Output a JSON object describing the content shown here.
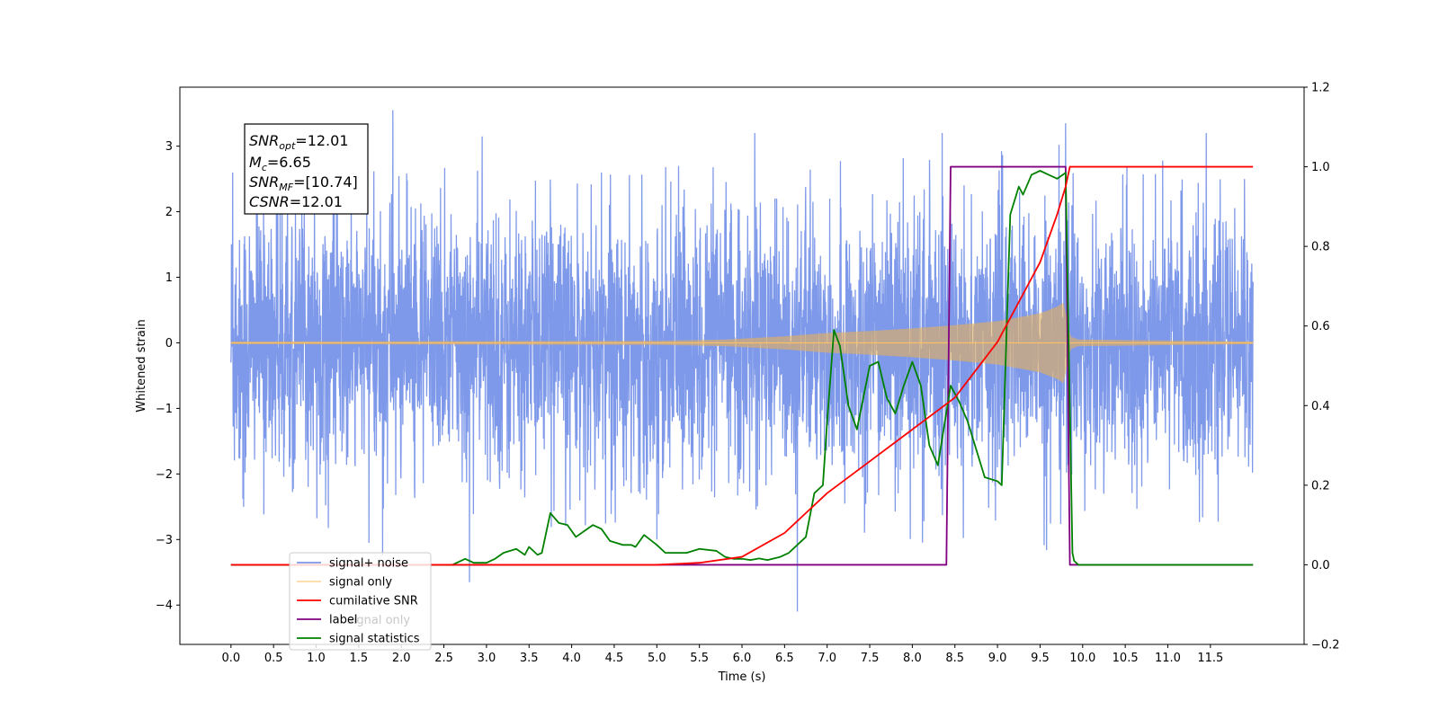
{
  "chart_data": {
    "type": "line",
    "title": "",
    "xlabel": "Time (s)",
    "ylabel": "Whitened strain",
    "xlim": [
      -0.6,
      12.6
    ],
    "ylim": [
      -4.6,
      3.9
    ],
    "ylim_right": [
      -0.2,
      1.2
    ],
    "grid": false,
    "legend_position": "lower-left",
    "x_ticks": [
      "0.0",
      "0.5",
      "1.0",
      "1.5",
      "2.0",
      "2.5",
      "3.0",
      "3.5",
      "4.0",
      "4.5",
      "5.0",
      "5.5",
      "6.0",
      "6.5",
      "7.0",
      "7.5",
      "8.0",
      "8.5",
      "9.0",
      "9.5",
      "10.0",
      "10.5",
      "11.0",
      "11.5"
    ],
    "y_ticks_left": [
      "−4",
      "−3",
      "−2",
      "−1",
      "0",
      "1",
      "2",
      "3"
    ],
    "y_ticks_right": [
      "−0.2",
      "0.0",
      "0.2",
      "0.4",
      "0.6",
      "0.8",
      "1.0",
      "1.2"
    ],
    "annotation": {
      "snr_opt": {
        "main": "SNR",
        "sub": "opt",
        "value": "=12.01"
      },
      "mc": {
        "main": "M",
        "sub": "c",
        "value": "=6.65"
      },
      "snr_mf": {
        "main": "SNR",
        "sub": "MF",
        "value": "=[10.74]"
      },
      "csnr": {
        "main": "CSNR",
        "value": "=12.01"
      }
    },
    "series": [
      {
        "name": "signal+ noise",
        "axis": "left",
        "color": "#7a96e8",
        "x_range": [
          0.0,
          12.0
        ],
        "typical_amplitude": 1.2,
        "peaks": [
          {
            "x": 0.02,
            "y": 2.6
          },
          {
            "x": 0.15,
            "y": -2.5
          },
          {
            "x": 0.3,
            "y": 2.9
          },
          {
            "x": 0.55,
            "y": 2.7
          },
          {
            "x": 1.2,
            "y": 2.6
          },
          {
            "x": 1.62,
            "y": -3.05
          },
          {
            "x": 1.78,
            "y": -3.25
          },
          {
            "x": 1.9,
            "y": 3.55
          },
          {
            "x": 2.8,
            "y": -3.65
          },
          {
            "x": 2.95,
            "y": 3.15
          },
          {
            "x": 4.35,
            "y": 2.6
          },
          {
            "x": 5.0,
            "y": -3.0
          },
          {
            "x": 6.15,
            "y": 3.2
          },
          {
            "x": 6.65,
            "y": -4.1
          },
          {
            "x": 8.35,
            "y": 3.2
          },
          {
            "x": 9.8,
            "y": 3.35
          },
          {
            "x": 11.45,
            "y": 3.2
          },
          {
            "x": 11.9,
            "y": 2.5
          }
        ]
      },
      {
        "name": "signal only",
        "axis": "left",
        "color": "#ffc266",
        "envelope": [
          [
            0.0,
            0.02
          ],
          [
            5.0,
            0.03
          ],
          [
            5.8,
            0.05
          ],
          [
            6.5,
            0.1
          ],
          [
            7.0,
            0.15
          ],
          [
            7.5,
            0.18
          ],
          [
            8.0,
            0.22
          ],
          [
            8.5,
            0.27
          ],
          [
            9.0,
            0.33
          ],
          [
            9.5,
            0.45
          ],
          [
            9.7,
            0.55
          ],
          [
            9.78,
            0.62
          ],
          [
            9.85,
            0.1
          ],
          [
            9.95,
            0.05
          ],
          [
            12.0,
            0.02
          ]
        ]
      },
      {
        "name": "cumilative SNR",
        "axis": "right",
        "color": "#ff0000",
        "points": [
          [
            0.0,
            0.0
          ],
          [
            5.0,
            0.0
          ],
          [
            5.5,
            0.005
          ],
          [
            6.0,
            0.02
          ],
          [
            6.5,
            0.08
          ],
          [
            7.0,
            0.18
          ],
          [
            7.5,
            0.26
          ],
          [
            8.0,
            0.34
          ],
          [
            8.5,
            0.42
          ],
          [
            9.0,
            0.56
          ],
          [
            9.5,
            0.76
          ],
          [
            9.7,
            0.88
          ],
          [
            9.8,
            0.95
          ],
          [
            9.85,
            1.0
          ],
          [
            12.0,
            1.0
          ]
        ]
      },
      {
        "name": "label",
        "axis": "right",
        "color": "#800080",
        "points": [
          [
            0.0,
            0.0
          ],
          [
            8.4,
            0.0
          ],
          [
            8.45,
            1.0
          ],
          [
            9.8,
            1.0
          ],
          [
            9.85,
            0.0
          ],
          [
            12.0,
            0.0
          ]
        ]
      },
      {
        "name": "signal statistics",
        "axis": "right",
        "color": "#008000",
        "points": [
          [
            0.0,
            0.0
          ],
          [
            2.6,
            0.0
          ],
          [
            2.75,
            0.015
          ],
          [
            2.85,
            0.005
          ],
          [
            3.0,
            0.005
          ],
          [
            3.1,
            0.015
          ],
          [
            3.2,
            0.03
          ],
          [
            3.35,
            0.04
          ],
          [
            3.45,
            0.025
          ],
          [
            3.5,
            0.045
          ],
          [
            3.6,
            0.025
          ],
          [
            3.65,
            0.03
          ],
          [
            3.75,
            0.13
          ],
          [
            3.85,
            0.105
          ],
          [
            3.95,
            0.1
          ],
          [
            4.05,
            0.07
          ],
          [
            4.15,
            0.085
          ],
          [
            4.25,
            0.1
          ],
          [
            4.35,
            0.09
          ],
          [
            4.45,
            0.06
          ],
          [
            4.6,
            0.05
          ],
          [
            4.7,
            0.05
          ],
          [
            4.75,
            0.045
          ],
          [
            4.85,
            0.075
          ],
          [
            5.0,
            0.05
          ],
          [
            5.1,
            0.03
          ],
          [
            5.25,
            0.03
          ],
          [
            5.35,
            0.03
          ],
          [
            5.5,
            0.04
          ],
          [
            5.7,
            0.035
          ],
          [
            5.8,
            0.02
          ],
          [
            5.9,
            0.015
          ],
          [
            6.0,
            0.015
          ],
          [
            6.1,
            0.012
          ],
          [
            6.2,
            0.016
          ],
          [
            6.3,
            0.012
          ],
          [
            6.45,
            0.02
          ],
          [
            6.55,
            0.03
          ],
          [
            6.6,
            0.04
          ],
          [
            6.75,
            0.07
          ],
          [
            6.85,
            0.18
          ],
          [
            6.95,
            0.2
          ],
          [
            7.0,
            0.36
          ],
          [
            7.08,
            0.59
          ],
          [
            7.15,
            0.55
          ],
          [
            7.25,
            0.4
          ],
          [
            7.35,
            0.34
          ],
          [
            7.5,
            0.5
          ],
          [
            7.6,
            0.51
          ],
          [
            7.7,
            0.42
          ],
          [
            7.8,
            0.38
          ],
          [
            7.9,
            0.45
          ],
          [
            8.0,
            0.51
          ],
          [
            8.1,
            0.45
          ],
          [
            8.2,
            0.3
          ],
          [
            8.3,
            0.25
          ],
          [
            8.45,
            0.45
          ],
          [
            8.55,
            0.41
          ],
          [
            8.65,
            0.36
          ],
          [
            8.75,
            0.29
          ],
          [
            8.85,
            0.22
          ],
          [
            9.0,
            0.21
          ],
          [
            9.05,
            0.2
          ],
          [
            9.15,
            0.88
          ],
          [
            9.25,
            0.95
          ],
          [
            9.3,
            0.93
          ],
          [
            9.4,
            0.98
          ],
          [
            9.5,
            0.99
          ],
          [
            9.6,
            0.98
          ],
          [
            9.7,
            0.97
          ],
          [
            9.8,
            0.985
          ],
          [
            9.88,
            0.03
          ],
          [
            9.9,
            0.01
          ],
          [
            9.95,
            0.0
          ],
          [
            12.0,
            0.0
          ]
        ]
      },
      {
        "name": "signal only",
        "axis": "left",
        "color": "#d3d3d3",
        "hidden_in_plot": true
      }
    ]
  }
}
